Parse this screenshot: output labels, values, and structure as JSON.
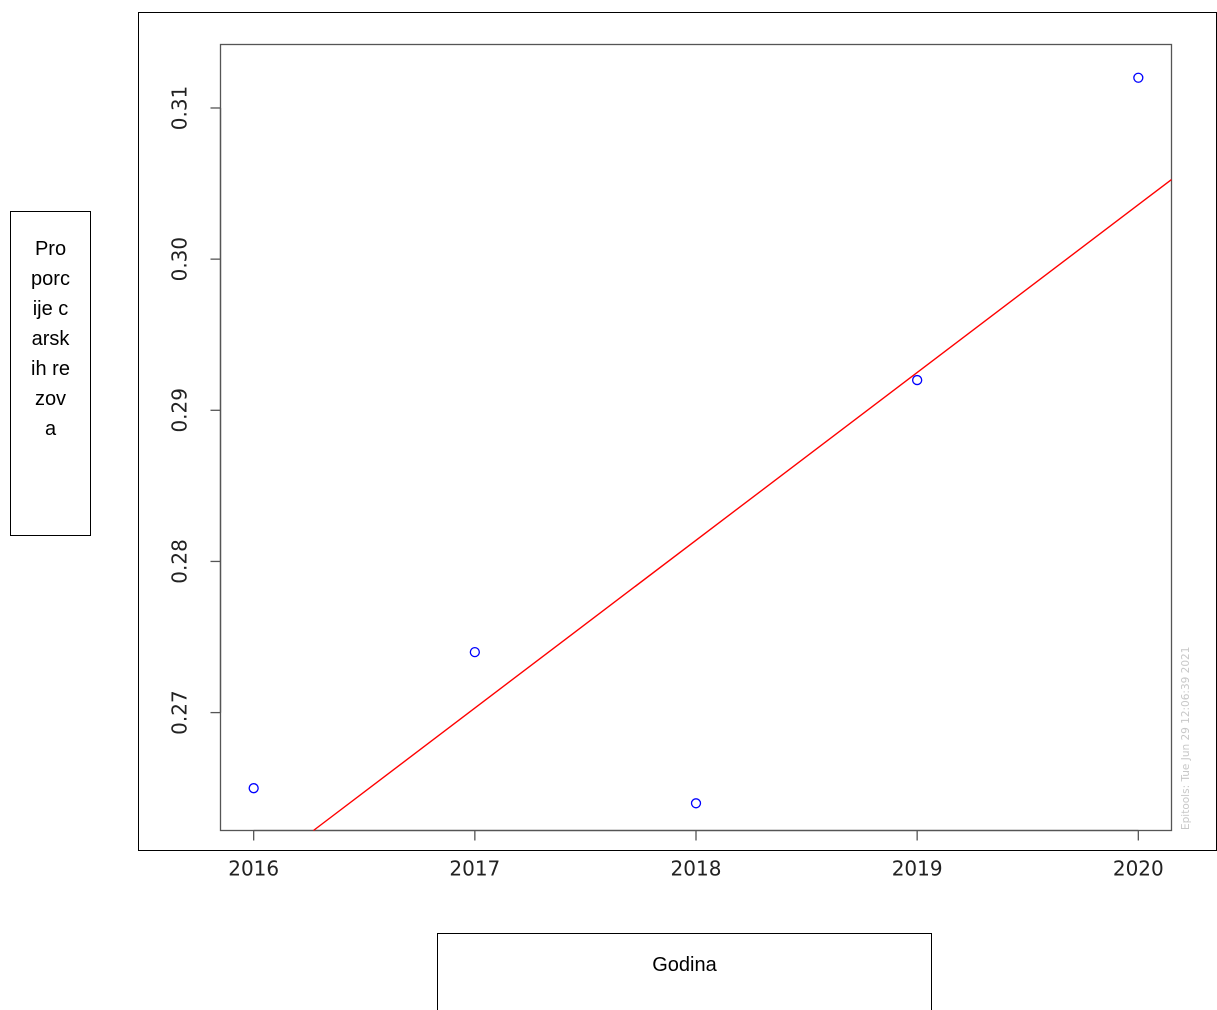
{
  "chart_data": {
    "type": "scatter",
    "title": "",
    "xlabel": "Godina",
    "ylabel": "Proporcije carskih rezova",
    "x_ticks": [
      "2016",
      "2017",
      "2018",
      "2019",
      "2020"
    ],
    "y_ticks": [
      "0.27",
      "0.28",
      "0.29",
      "0.30",
      "0.31"
    ],
    "xlim": [
      2015.85,
      2020.15
    ],
    "ylim": [
      0.2622,
      0.3142
    ],
    "grid": false,
    "points": [
      {
        "x": 2016,
        "y": 0.265
      },
      {
        "x": 2017,
        "y": 0.274
      },
      {
        "x": 2018,
        "y": 0.264
      },
      {
        "x": 2019,
        "y": 0.292
      },
      {
        "x": 2020,
        "y": 0.312
      }
    ],
    "trendline": {
      "slope": 0.0111,
      "intercept_at_2016": 0.2592
    },
    "point_color": "#0000ff",
    "line_color": "#ff0000",
    "watermark": "Epitools: Tue Jun 29 12:06:39 2021"
  }
}
